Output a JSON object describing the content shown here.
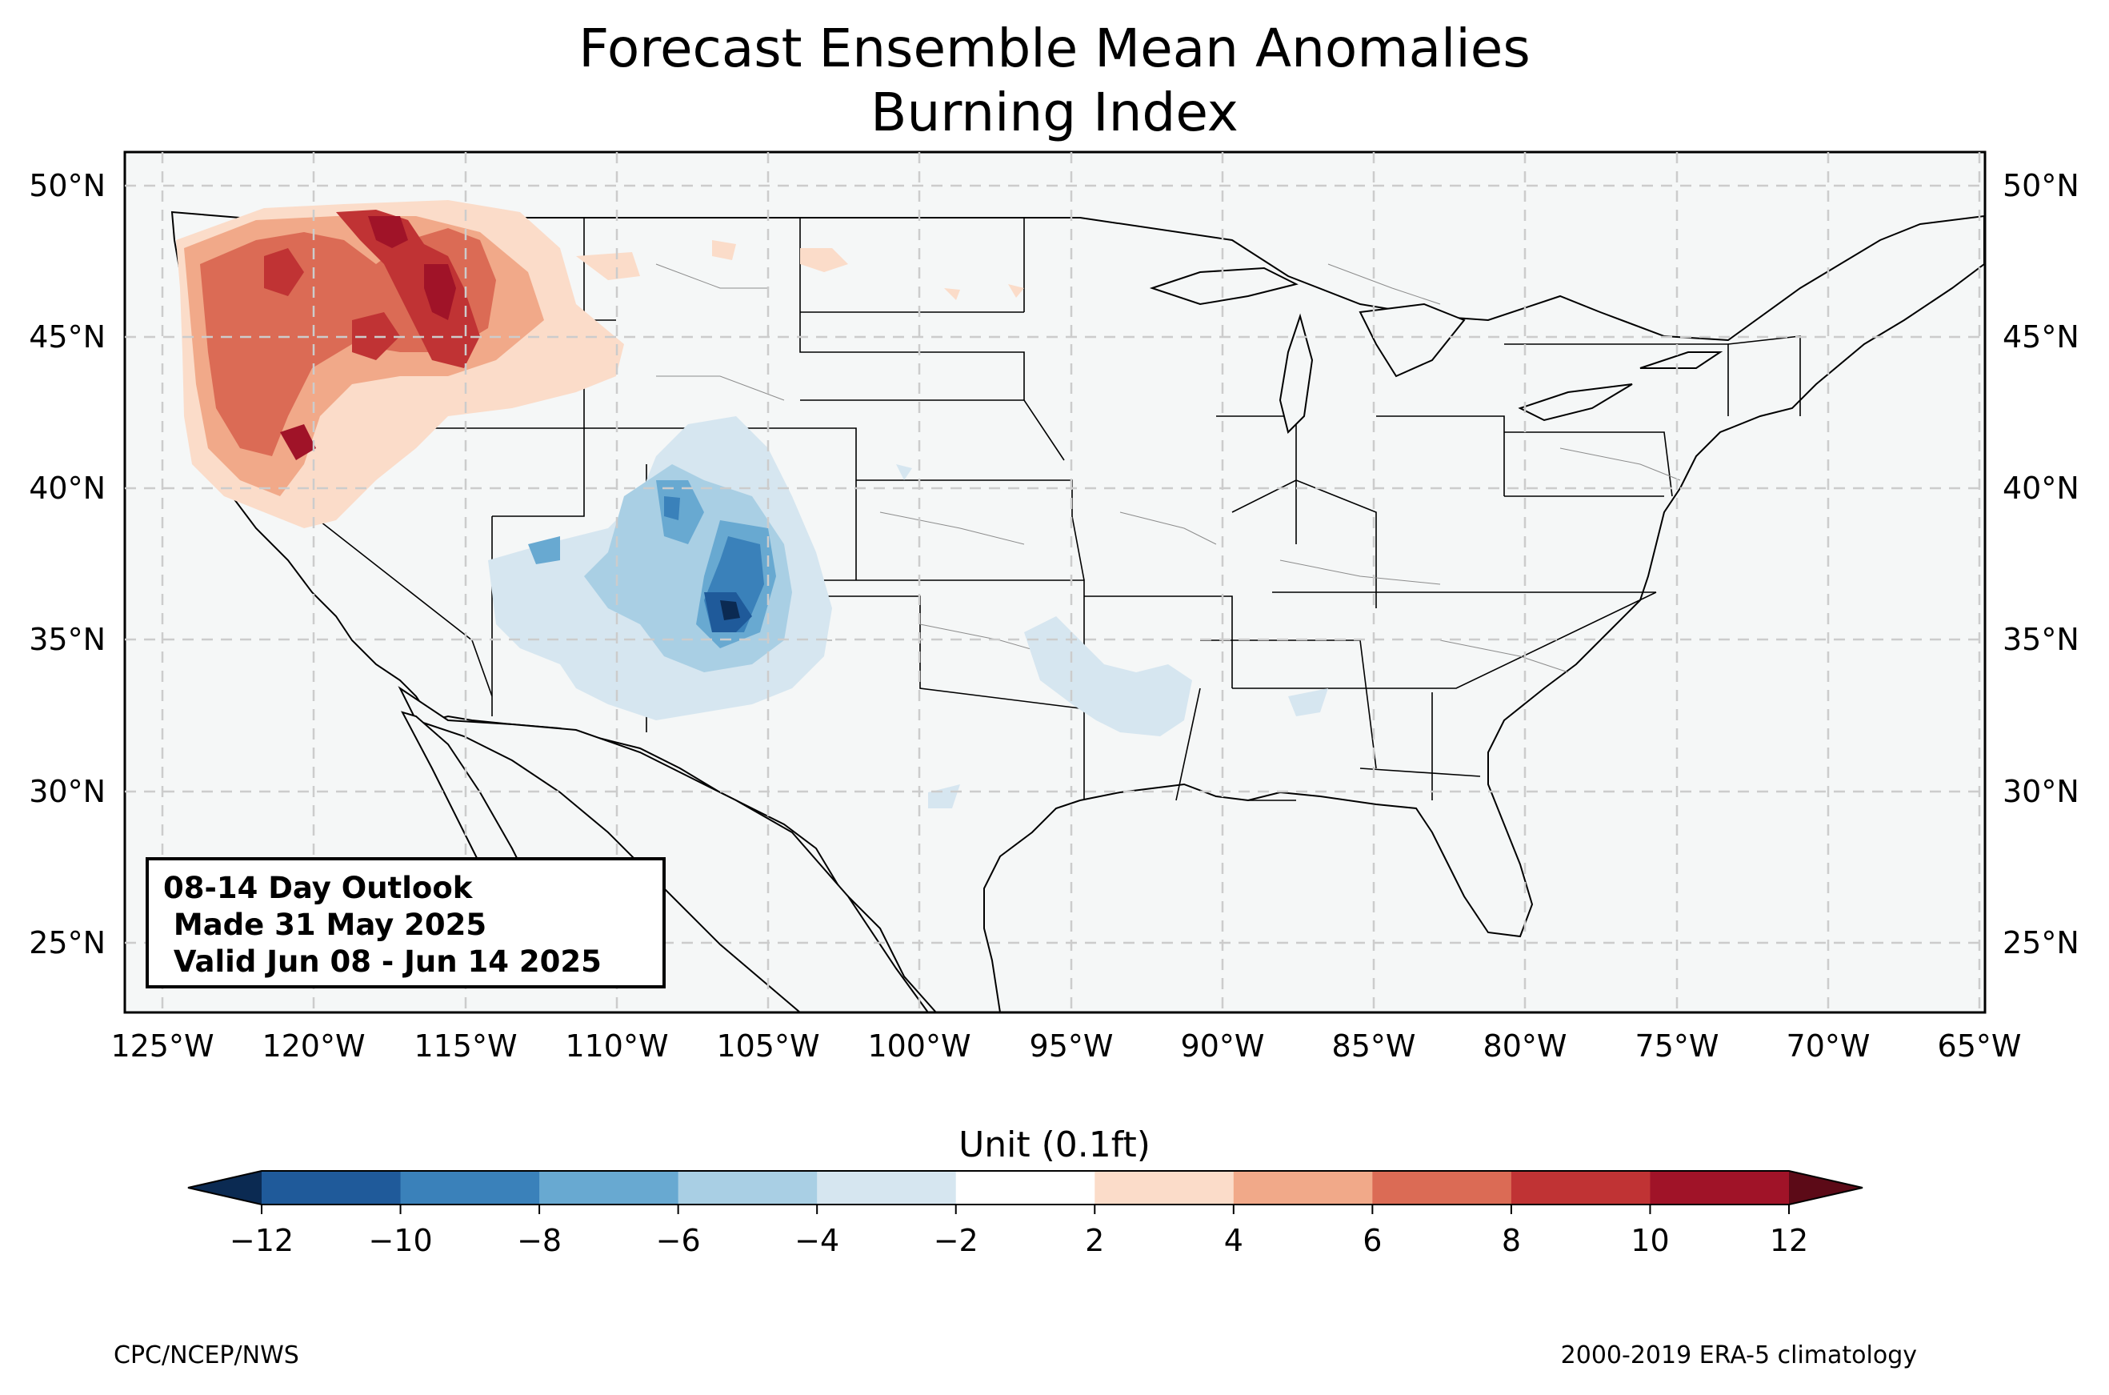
{
  "title_line1": "Forecast Ensemble Mean Anomalies",
  "title_line2": "Burning Index",
  "lat_labels": [
    "50°N",
    "45°N",
    "40°N",
    "35°N",
    "30°N",
    "25°N"
  ],
  "lon_labels": [
    "125°W",
    "120°W",
    "115°W",
    "110°W",
    "105°W",
    "100°W",
    "95°W",
    "90°W",
    "85°W",
    "80°W",
    "75°W",
    "70°W",
    "65°W"
  ],
  "info_box": {
    "line1": "08-14 Day Outlook",
    "line2": " Made 31 May 2025",
    "line3": " Valid Jun 08 - Jun 14 2025"
  },
  "colorbar": {
    "title": "Unit (0.1ft)",
    "ticks": [
      "−12",
      "−10",
      "−8",
      "−6",
      "−4",
      "−2",
      "2",
      "4",
      "6",
      "8",
      "10",
      "12"
    ],
    "colors": [
      "#1f5a9a",
      "#3a81ba",
      "#68a9d1",
      "#a9cfe4",
      "#d6e6f0",
      "#ffffff",
      "#fbdcc9",
      "#f1a989",
      "#db6b55",
      "#c03334",
      "#a01328"
    ],
    "under_color": "#0b2a52",
    "over_color": "#5c0a17"
  },
  "anomaly_palette": {
    "neutral": "#f5f7f7",
    "pos": [
      "#fbdcc9",
      "#f1a989",
      "#db6b55",
      "#c03334",
      "#a01328"
    ],
    "neg": [
      "#d6e6f0",
      "#a9cfe4",
      "#68a9d1",
      "#3a81ba",
      "#1f5a9a",
      "#0b2a52"
    ]
  },
  "footer_left": "CPC/NCEP/NWS",
  "footer_right": "2000-2019 ERA-5 climatology"
}
